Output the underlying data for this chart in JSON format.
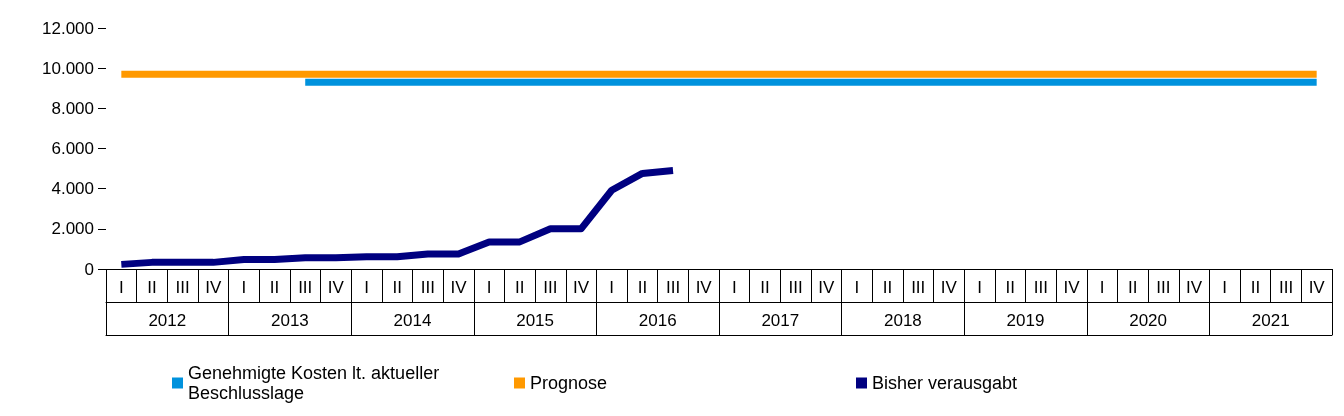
{
  "chart_data": {
    "type": "line",
    "categories": [
      "I",
      "II",
      "III",
      "IV",
      "I",
      "II",
      "III",
      "IV",
      "I",
      "II",
      "III",
      "IV",
      "I",
      "II",
      "III",
      "IV",
      "I",
      "II",
      "III",
      "IV",
      "I",
      "II",
      "III",
      "IV",
      "I",
      "II",
      "III",
      "IV",
      "I",
      "II",
      "III",
      "IV",
      "I",
      "II",
      "III",
      "IV",
      "I",
      "II",
      "III",
      "IV"
    ],
    "annotations": [
      "2012",
      "2013",
      "2014",
      "2015",
      "2016",
      "2017",
      "2018",
      "2019",
      "2020",
      "2021"
    ],
    "series": [
      {
        "name": "Genehmigte Kosten lt. aktueller Beschlusslage",
        "color": "#0092dd",
        "values": [
          null,
          null,
          null,
          null,
          null,
          null,
          9300,
          9300,
          9300,
          9300,
          9300,
          9300,
          9300,
          9300,
          9300,
          9300,
          9300,
          9300,
          9300,
          9300,
          9300,
          9300,
          9300,
          9300,
          9300,
          9300,
          9300,
          9300,
          9300,
          9300,
          9300,
          9300,
          9300,
          9300,
          9300,
          9300,
          9300,
          9300,
          9300,
          9300
        ]
      },
      {
        "name": "Prognose",
        "color": "#ff9900",
        "values": [
          9700,
          9700,
          9700,
          9700,
          9700,
          9700,
          9700,
          9700,
          9700,
          9700,
          9700,
          9700,
          9700,
          9700,
          9700,
          9700,
          9700,
          9700,
          9700,
          9700,
          9700,
          9700,
          9700,
          9700,
          9700,
          9700,
          9700,
          9700,
          9700,
          9700,
          9700,
          9700,
          9700,
          9700,
          9700,
          9700,
          9700,
          9700,
          9700,
          9700
        ]
      },
      {
        "name": "Bisher verausgabt",
        "color": "#000080",
        "values": [
          230,
          330,
          330,
          330,
          470,
          470,
          560,
          560,
          610,
          610,
          750,
          750,
          1350,
          1350,
          2000,
          2000,
          3920,
          4760,
          4900,
          null,
          null,
          null,
          null,
          null,
          null,
          null,
          null,
          null,
          null,
          null,
          null,
          null,
          null,
          null,
          null,
          null,
          null,
          null,
          null,
          null
        ]
      }
    ],
    "ylim": [
      0,
      12000
    ],
    "yticks": [
      {
        "value": 0,
        "label": "0"
      },
      {
        "value": 2000,
        "label": "2.000"
      },
      {
        "value": 4000,
        "label": "4.000"
      },
      {
        "value": 6000,
        "label": "6.000"
      },
      {
        "value": 8000,
        "label": "8.000"
      },
      {
        "value": 10000,
        "label": "10.000"
      },
      {
        "value": 12000,
        "label": "12.000"
      }
    ],
    "grid": false,
    "legend": "bottom",
    "marker": "none",
    "line_style": "solid"
  }
}
